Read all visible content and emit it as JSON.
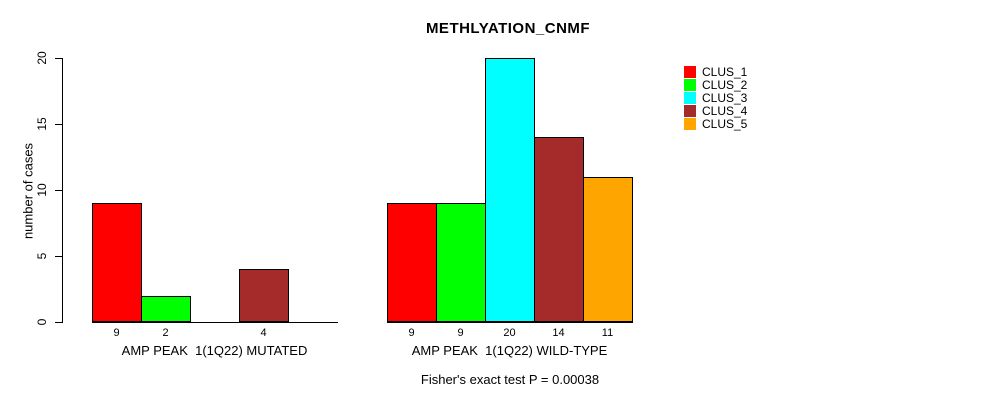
{
  "chart_data": {
    "type": "bar",
    "title": "METHLYATION_CNMF",
    "ylabel": "number of cases",
    "ylim": [
      0,
      20
    ],
    "yticks": [
      0,
      5,
      10,
      15,
      20
    ],
    "grid": false,
    "legend_position": "right",
    "bar_border_color": "#000000",
    "categories": [
      "AMP PEAK  1(1Q22) MUTATED",
      "AMP PEAK  1(1Q22) WILD-TYPE"
    ],
    "series": [
      {
        "name": "CLUS_1",
        "color": "#FF0000",
        "values": [
          9,
          9
        ]
      },
      {
        "name": "CLUS_2",
        "color": "#00FF00",
        "values": [
          2,
          9
        ]
      },
      {
        "name": "CLUS_3",
        "color": "#00FFFF",
        "values": [
          0,
          20
        ]
      },
      {
        "name": "CLUS_4",
        "color": "#A52A2A",
        "values": [
          4,
          14
        ]
      },
      {
        "name": "CLUS_5",
        "color": "#FFA500",
        "values": [
          0,
          11
        ]
      }
    ],
    "footnote": "Fisher's exact test P = 0.00038"
  }
}
